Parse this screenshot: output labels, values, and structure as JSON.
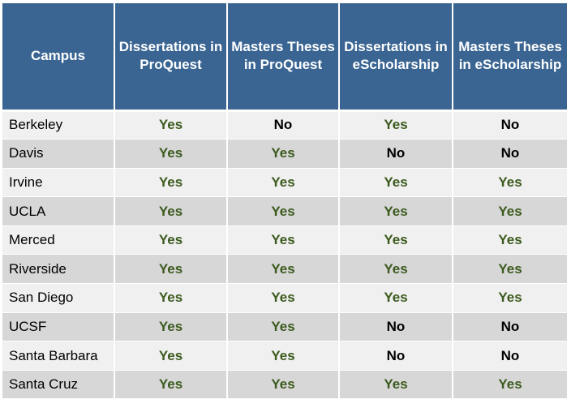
{
  "colors": {
    "header_bg": "#3a6592",
    "header_text": "#ffffff",
    "row_light": "#f0f0f0",
    "row_dark": "#d7d7d7",
    "yes_text": "#3b5a1d",
    "no_text": "#000000"
  },
  "table": {
    "headers": [
      "Campus",
      "Dissertations in ProQuest",
      "Masters Theses in ProQuest",
      "Dissertations in eScholarship",
      "Masters Theses in eScholarship"
    ],
    "rows": [
      {
        "campus": "Berkeley",
        "values": [
          "Yes",
          "No",
          "Yes",
          "No"
        ]
      },
      {
        "campus": "Davis",
        "values": [
          "Yes",
          "Yes",
          "No",
          "No"
        ]
      },
      {
        "campus": "Irvine",
        "values": [
          "Yes",
          "Yes",
          "Yes",
          "Yes"
        ]
      },
      {
        "campus": "UCLA",
        "values": [
          "Yes",
          "Yes",
          "Yes",
          "Yes"
        ]
      },
      {
        "campus": "Merced",
        "values": [
          "Yes",
          "Yes",
          "Yes",
          "Yes"
        ]
      },
      {
        "campus": "Riverside",
        "values": [
          "Yes",
          "Yes",
          "Yes",
          "Yes"
        ]
      },
      {
        "campus": "San Diego",
        "values": [
          "Yes",
          "Yes",
          "Yes",
          "Yes"
        ]
      },
      {
        "campus": "UCSF",
        "values": [
          "Yes",
          "Yes",
          "No",
          "No"
        ]
      },
      {
        "campus": "Santa Barbara",
        "values": [
          "Yes",
          "Yes",
          "No",
          "No"
        ]
      },
      {
        "campus": "Santa Cruz",
        "values": [
          "Yes",
          "Yes",
          "Yes",
          "Yes"
        ]
      }
    ]
  }
}
